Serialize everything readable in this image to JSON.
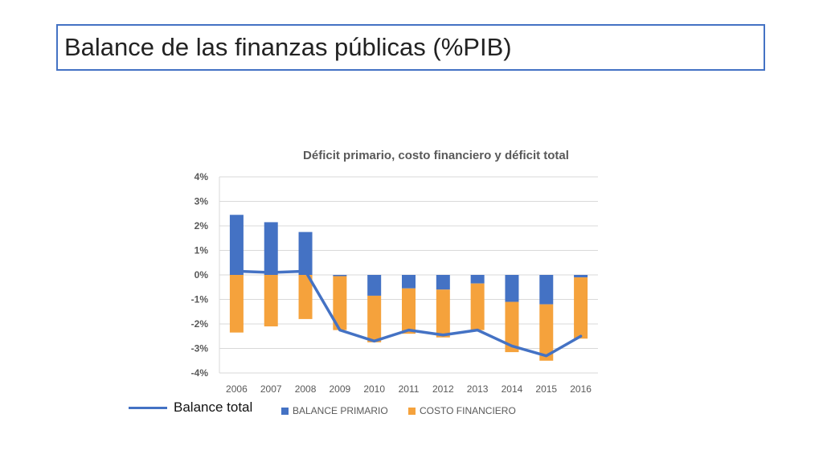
{
  "slide": {
    "title": "Balance de las finanzas públicas (%PIB)"
  },
  "colors": {
    "balance_primario": "#4472c4",
    "costo_financiero": "#f5a23c",
    "balance_total": "#4472c4",
    "grid": "#d9d9d9",
    "axis_text": "#595959"
  },
  "chart_data": {
    "type": "bar",
    "title": "Déficit primario, costo financiero y déficit total",
    "xlabel": "",
    "ylabel": "",
    "ylim": [
      -4,
      4
    ],
    "ytick_values": [
      4,
      3,
      2,
      1,
      0,
      -1,
      -2,
      -3,
      -4
    ],
    "ytick_labels": [
      "4%",
      "3%",
      "2%",
      "1%",
      "0%",
      "-1%",
      "-2%",
      "-3%",
      "-4%"
    ],
    "categories": [
      "2006",
      "2007",
      "2008",
      "2009",
      "2010",
      "2011",
      "2012",
      "2013",
      "2014",
      "2015",
      "2016"
    ],
    "series": [
      {
        "name": "BALANCE PRIMARIO",
        "kind": "bar",
        "values": [
          2.45,
          2.15,
          1.75,
          -0.05,
          -0.85,
          -0.55,
          -0.6,
          -0.35,
          -1.1,
          -1.2,
          -0.1
        ]
      },
      {
        "name": "COSTO FINANCIERO",
        "kind": "bar",
        "values": [
          -2.35,
          -2.1,
          -1.8,
          -2.2,
          -1.9,
          -1.85,
          -1.95,
          -1.9,
          -2.05,
          -2.3,
          -2.5
        ]
      },
      {
        "name": "Balance total",
        "kind": "line",
        "values": [
          0.15,
          0.1,
          0.15,
          -2.25,
          -2.7,
          -2.25,
          -2.45,
          -2.25,
          -2.9,
          -3.3,
          -2.5
        ]
      }
    ],
    "legend": {
      "bar_labels": [
        "BALANCE PRIMARIO",
        "COSTO FINANCIERO"
      ],
      "line_label": "Balance total"
    },
    "grid": true,
    "legend_placement": "bottom"
  }
}
